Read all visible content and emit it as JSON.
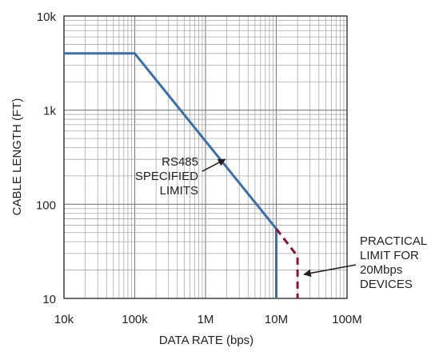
{
  "chart_data": {
    "type": "line",
    "xlabel": "DATA RATE (bps)",
    "ylabel": "CABLE LENGTH (FT)",
    "x_scale": "log",
    "y_scale": "log",
    "xlim": [
      10000,
      100000000
    ],
    "ylim": [
      10,
      10000
    ],
    "grid": true,
    "x_ticks": [
      {
        "value": 10000,
        "label": "10k"
      },
      {
        "value": 100000,
        "label": "100k"
      },
      {
        "value": 1000000,
        "label": "1M"
      },
      {
        "value": 10000000,
        "label": "10M"
      },
      {
        "value": 100000000,
        "label": "100M"
      }
    ],
    "y_ticks": [
      {
        "value": 10,
        "label": "10"
      },
      {
        "value": 100,
        "label": "100"
      },
      {
        "value": 1000,
        "label": "1k"
      },
      {
        "value": 10000,
        "label": "10k"
      }
    ],
    "series": [
      {
        "color": "#3a6fa8",
        "style": "solid",
        "points": [
          {
            "x": 10000,
            "y": 4000
          },
          {
            "x": 100000,
            "y": 4000
          },
          {
            "x": 10000000,
            "y": 55
          },
          {
            "x": 10000000,
            "y": 10
          }
        ]
      },
      {
        "color": "#8a1538",
        "style": "dashed",
        "points": [
          {
            "x": 10000000,
            "y": 55
          },
          {
            "x": 20000000,
            "y": 28
          },
          {
            "x": 20000000,
            "y": 10
          }
        ]
      }
    ],
    "annotations": [
      {
        "lines": [
          "RS485",
          "SPECIFIED",
          "LIMITS"
        ],
        "points_to": {
          "x": 1900000,
          "y": 300
        }
      },
      {
        "lines": [
          "PRACTICAL",
          "LIMIT FOR",
          "20Mbps",
          "DEVICES"
        ],
        "points_to": {
          "x": 20000000,
          "y": 18
        }
      }
    ]
  }
}
